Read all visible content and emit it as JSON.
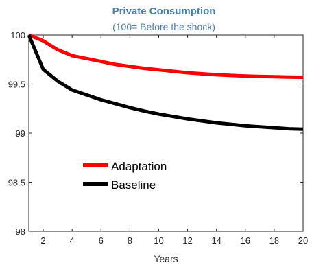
{
  "chart_data": {
    "type": "line",
    "title": "Private Consumption",
    "subtitle": "(100= Before the shock)",
    "xlabel": "Years",
    "ylabel": "",
    "xlim": [
      1,
      20
    ],
    "ylim": [
      98,
      100
    ],
    "xticks": [
      2,
      4,
      6,
      8,
      10,
      12,
      14,
      16,
      18,
      20
    ],
    "yticks": [
      98,
      98.5,
      99,
      99.5,
      100
    ],
    "ytick_labels": [
      "98",
      "98.5",
      "99",
      "99.5",
      "100"
    ],
    "grid": false,
    "legend_position": "lower-left",
    "x": [
      1,
      2,
      3,
      4,
      5,
      6,
      7,
      8,
      9,
      10,
      11,
      12,
      13,
      14,
      15,
      16,
      17,
      18,
      19,
      20
    ],
    "series": [
      {
        "name": "Adaptation",
        "color": "#ff0000",
        "values": [
          100,
          99.94,
          99.85,
          99.79,
          99.76,
          99.73,
          99.7,
          99.68,
          99.66,
          99.645,
          99.63,
          99.615,
          99.605,
          99.595,
          99.588,
          99.582,
          99.578,
          99.575,
          99.572,
          99.57
        ]
      },
      {
        "name": "Baseline",
        "color": "#000000",
        "values": [
          100,
          99.65,
          99.53,
          99.44,
          99.39,
          99.34,
          99.3,
          99.26,
          99.225,
          99.195,
          99.17,
          99.145,
          99.125,
          99.105,
          99.09,
          99.075,
          99.065,
          99.055,
          99.045,
          99.04
        ]
      }
    ]
  }
}
